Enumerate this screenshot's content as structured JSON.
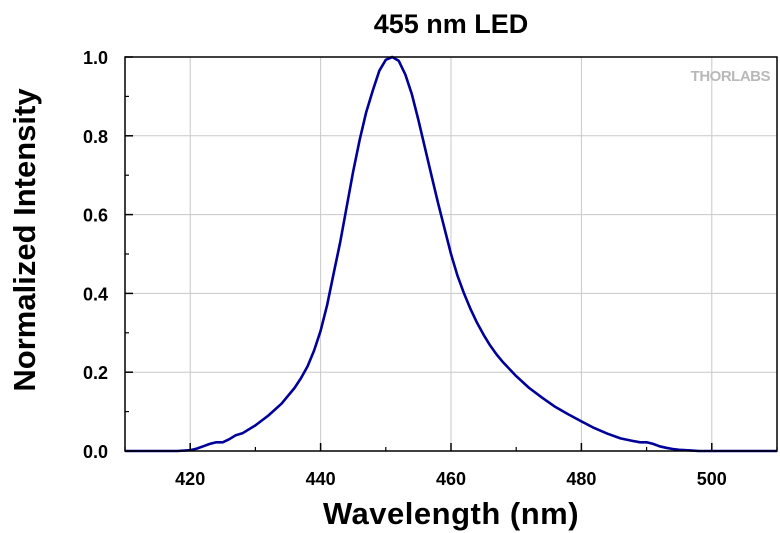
{
  "chart_data": {
    "type": "line",
    "title": "455 nm LED",
    "xlabel": "Wavelength (nm)",
    "ylabel": "Normalized Intensity",
    "xlim": [
      410,
      510
    ],
    "ylim": [
      0.0,
      1.0
    ],
    "xticks": [
      420,
      440,
      460,
      480,
      500
    ],
    "yticks": [
      "0.0",
      "0.2",
      "0.4",
      "0.6",
      "0.8",
      "1.0"
    ],
    "grid": true,
    "line_color": "#000099",
    "logo": "THORLABS",
    "series": [
      {
        "x": [
          410,
          418,
          420,
          421,
          422,
          423,
          424,
          425,
          426,
          427,
          428,
          430,
          432,
          434,
          436,
          437,
          438,
          439,
          440,
          441,
          442,
          443,
          444,
          445,
          446,
          447,
          448,
          449,
          450,
          451,
          452,
          453,
          454,
          455,
          456,
          457,
          458,
          459,
          460,
          461,
          462,
          463,
          464,
          465,
          466,
          467,
          468,
          470,
          472,
          474,
          476,
          478,
          480,
          482,
          484,
          486,
          488,
          489,
          490,
          491,
          492,
          493,
          494,
          495,
          496,
          497,
          498,
          500,
          502,
          510
        ],
        "y": [
          0.0,
          0.0,
          0.002,
          0.006,
          0.012,
          0.018,
          0.022,
          0.022,
          0.03,
          0.04,
          0.045,
          0.065,
          0.09,
          0.12,
          0.16,
          0.185,
          0.215,
          0.255,
          0.305,
          0.37,
          0.45,
          0.53,
          0.62,
          0.71,
          0.79,
          0.86,
          0.915,
          0.965,
          0.993,
          1.0,
          0.99,
          0.955,
          0.905,
          0.84,
          0.77,
          0.7,
          0.63,
          0.565,
          0.5,
          0.445,
          0.4,
          0.36,
          0.325,
          0.295,
          0.268,
          0.245,
          0.225,
          0.19,
          0.16,
          0.135,
          0.112,
          0.093,
          0.075,
          0.058,
          0.044,
          0.032,
          0.025,
          0.022,
          0.022,
          0.018,
          0.012,
          0.008,
          0.005,
          0.003,
          0.002,
          0.001,
          0.0,
          0.0,
          0.0,
          0.0
        ]
      }
    ]
  }
}
